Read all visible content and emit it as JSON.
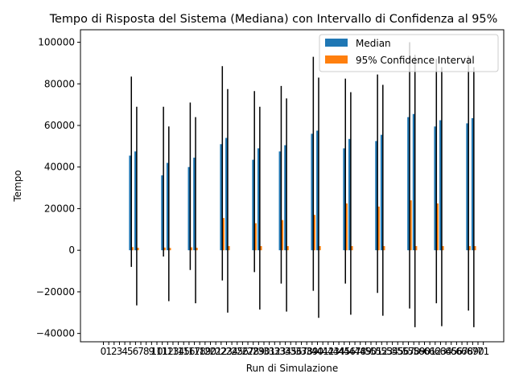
{
  "chart_data": {
    "type": "bar",
    "title": "Tempo di Risposta del Sistema (Mediana) con Intervallo di Confidenza al 95%",
    "xlabel": "Run di Simulazione",
    "ylabel": "Tempo",
    "ylim": [
      -44000,
      106000
    ],
    "yticks": [
      -40000,
      -20000,
      0,
      20000,
      40000,
      60000,
      80000,
      100000
    ],
    "ytick_labels": [
      "−40000",
      "−20000",
      "0",
      "20000",
      "40000",
      "60000",
      "80000",
      "100000"
    ],
    "xtick_labels": [
      "0",
      "1",
      "2",
      "3",
      "4",
      "5",
      "6",
      "7",
      "8",
      "9",
      "10",
      "11",
      "12",
      "13",
      "14",
      "15",
      "16",
      "17",
      "18",
      "19",
      "20",
      "21",
      "22",
      "23",
      "24",
      "25",
      "26",
      "27",
      "28",
      "29",
      "30",
      "31",
      "32",
      "33",
      "34",
      "35",
      "36",
      "37",
      "38",
      "39",
      "40",
      "41",
      "42",
      "43",
      "44",
      "45",
      "46",
      "47",
      "48",
      "49",
      "50",
      "51",
      "52",
      "53",
      "54",
      "55",
      "56",
      "57",
      "58",
      "59",
      "60",
      "61",
      "62",
      "63",
      "64",
      "65",
      "66",
      "67",
      "68",
      "69",
      "70",
      "71"
    ],
    "legend": {
      "position": "top-right",
      "entries": [
        {
          "label": "Median",
          "color": "#1f77b4"
        },
        {
          "label": "95% Confidence Interval",
          "color": "#ff7f0e"
        }
      ]
    },
    "series": [
      {
        "name": "Median",
        "color": "#1f77b4",
        "points": [
          {
            "x": 5,
            "value": 45500,
            "err_low": -8000,
            "err_high": 83500
          },
          {
            "x": 6,
            "value": 47500,
            "err_low": -26500,
            "err_high": 69000
          },
          {
            "x": 11,
            "value": 36000,
            "err_low": -3000,
            "err_high": 69000
          },
          {
            "x": 12,
            "value": 42000,
            "err_low": -24500,
            "err_high": 59500
          },
          {
            "x": 16,
            "value": 40000,
            "err_low": -9500,
            "err_high": 71000
          },
          {
            "x": 17,
            "value": 44500,
            "err_low": -25500,
            "err_high": 64000
          },
          {
            "x": 22,
            "value": 51000,
            "err_low": -14500,
            "err_high": 88500
          },
          {
            "x": 23,
            "value": 54000,
            "err_low": -30000,
            "err_high": 77500
          },
          {
            "x": 28,
            "value": 43500,
            "err_low": -10500,
            "err_high": 76500
          },
          {
            "x": 29,
            "value": 49000,
            "err_low": -28500,
            "err_high": 69000
          },
          {
            "x": 33,
            "value": 47500,
            "err_low": -16000,
            "err_high": 79000
          },
          {
            "x": 34,
            "value": 50500,
            "err_low": -29500,
            "err_high": 73000
          },
          {
            "x": 39,
            "value": 56000,
            "err_low": -19500,
            "err_high": 93000
          },
          {
            "x": 40,
            "value": 57500,
            "err_low": -32500,
            "err_high": 83000
          },
          {
            "x": 45,
            "value": 49000,
            "err_low": -16000,
            "err_high": 82500
          },
          {
            "x": 46,
            "value": 53500,
            "err_low": -31000,
            "err_high": 76000
          },
          {
            "x": 51,
            "value": 52500,
            "err_low": -20500,
            "err_high": 84500
          },
          {
            "x": 52,
            "value": 55500,
            "err_low": -31500,
            "err_high": 79500
          },
          {
            "x": 57,
            "value": 64000,
            "err_low": -28000,
            "err_high": 100000
          },
          {
            "x": 58,
            "value": 65500,
            "err_low": -37000,
            "err_high": 94000
          },
          {
            "x": 62,
            "value": 59500,
            "err_low": -25500,
            "err_high": 92000
          },
          {
            "x": 63,
            "value": 62500,
            "err_low": -36500,
            "err_high": 88000
          },
          {
            "x": 68,
            "value": 61000,
            "err_low": -29000,
            "err_high": 93500
          },
          {
            "x": 69,
            "value": 63500,
            "err_low": -37000,
            "err_high": 88000
          }
        ]
      },
      {
        "name": "95% Confidence Interval",
        "color": "#ff7f0e",
        "points": [
          {
            "x": 5,
            "value": 1500
          },
          {
            "x": 6,
            "value": 1200
          },
          {
            "x": 11,
            "value": 1300
          },
          {
            "x": 12,
            "value": 1100
          },
          {
            "x": 16,
            "value": 1400
          },
          {
            "x": 17,
            "value": 1200
          },
          {
            "x": 22,
            "value": 15500
          },
          {
            "x": 23,
            "value": 2000
          },
          {
            "x": 28,
            "value": 13000
          },
          {
            "x": 29,
            "value": 2000
          },
          {
            "x": 33,
            "value": 14500
          },
          {
            "x": 34,
            "value": 2000
          },
          {
            "x": 39,
            "value": 17000
          },
          {
            "x": 40,
            "value": 2000
          },
          {
            "x": 45,
            "value": 22500
          },
          {
            "x": 46,
            "value": 2000
          },
          {
            "x": 51,
            "value": 21000
          },
          {
            "x": 52,
            "value": 2000
          },
          {
            "x": 57,
            "value": 24000
          },
          {
            "x": 58,
            "value": 2000
          },
          {
            "x": 62,
            "value": 22500
          },
          {
            "x": 63,
            "value": 2000
          },
          {
            "x": 68,
            "value": 2000
          },
          {
            "x": 69,
            "value": 2000
          }
        ]
      }
    ]
  }
}
